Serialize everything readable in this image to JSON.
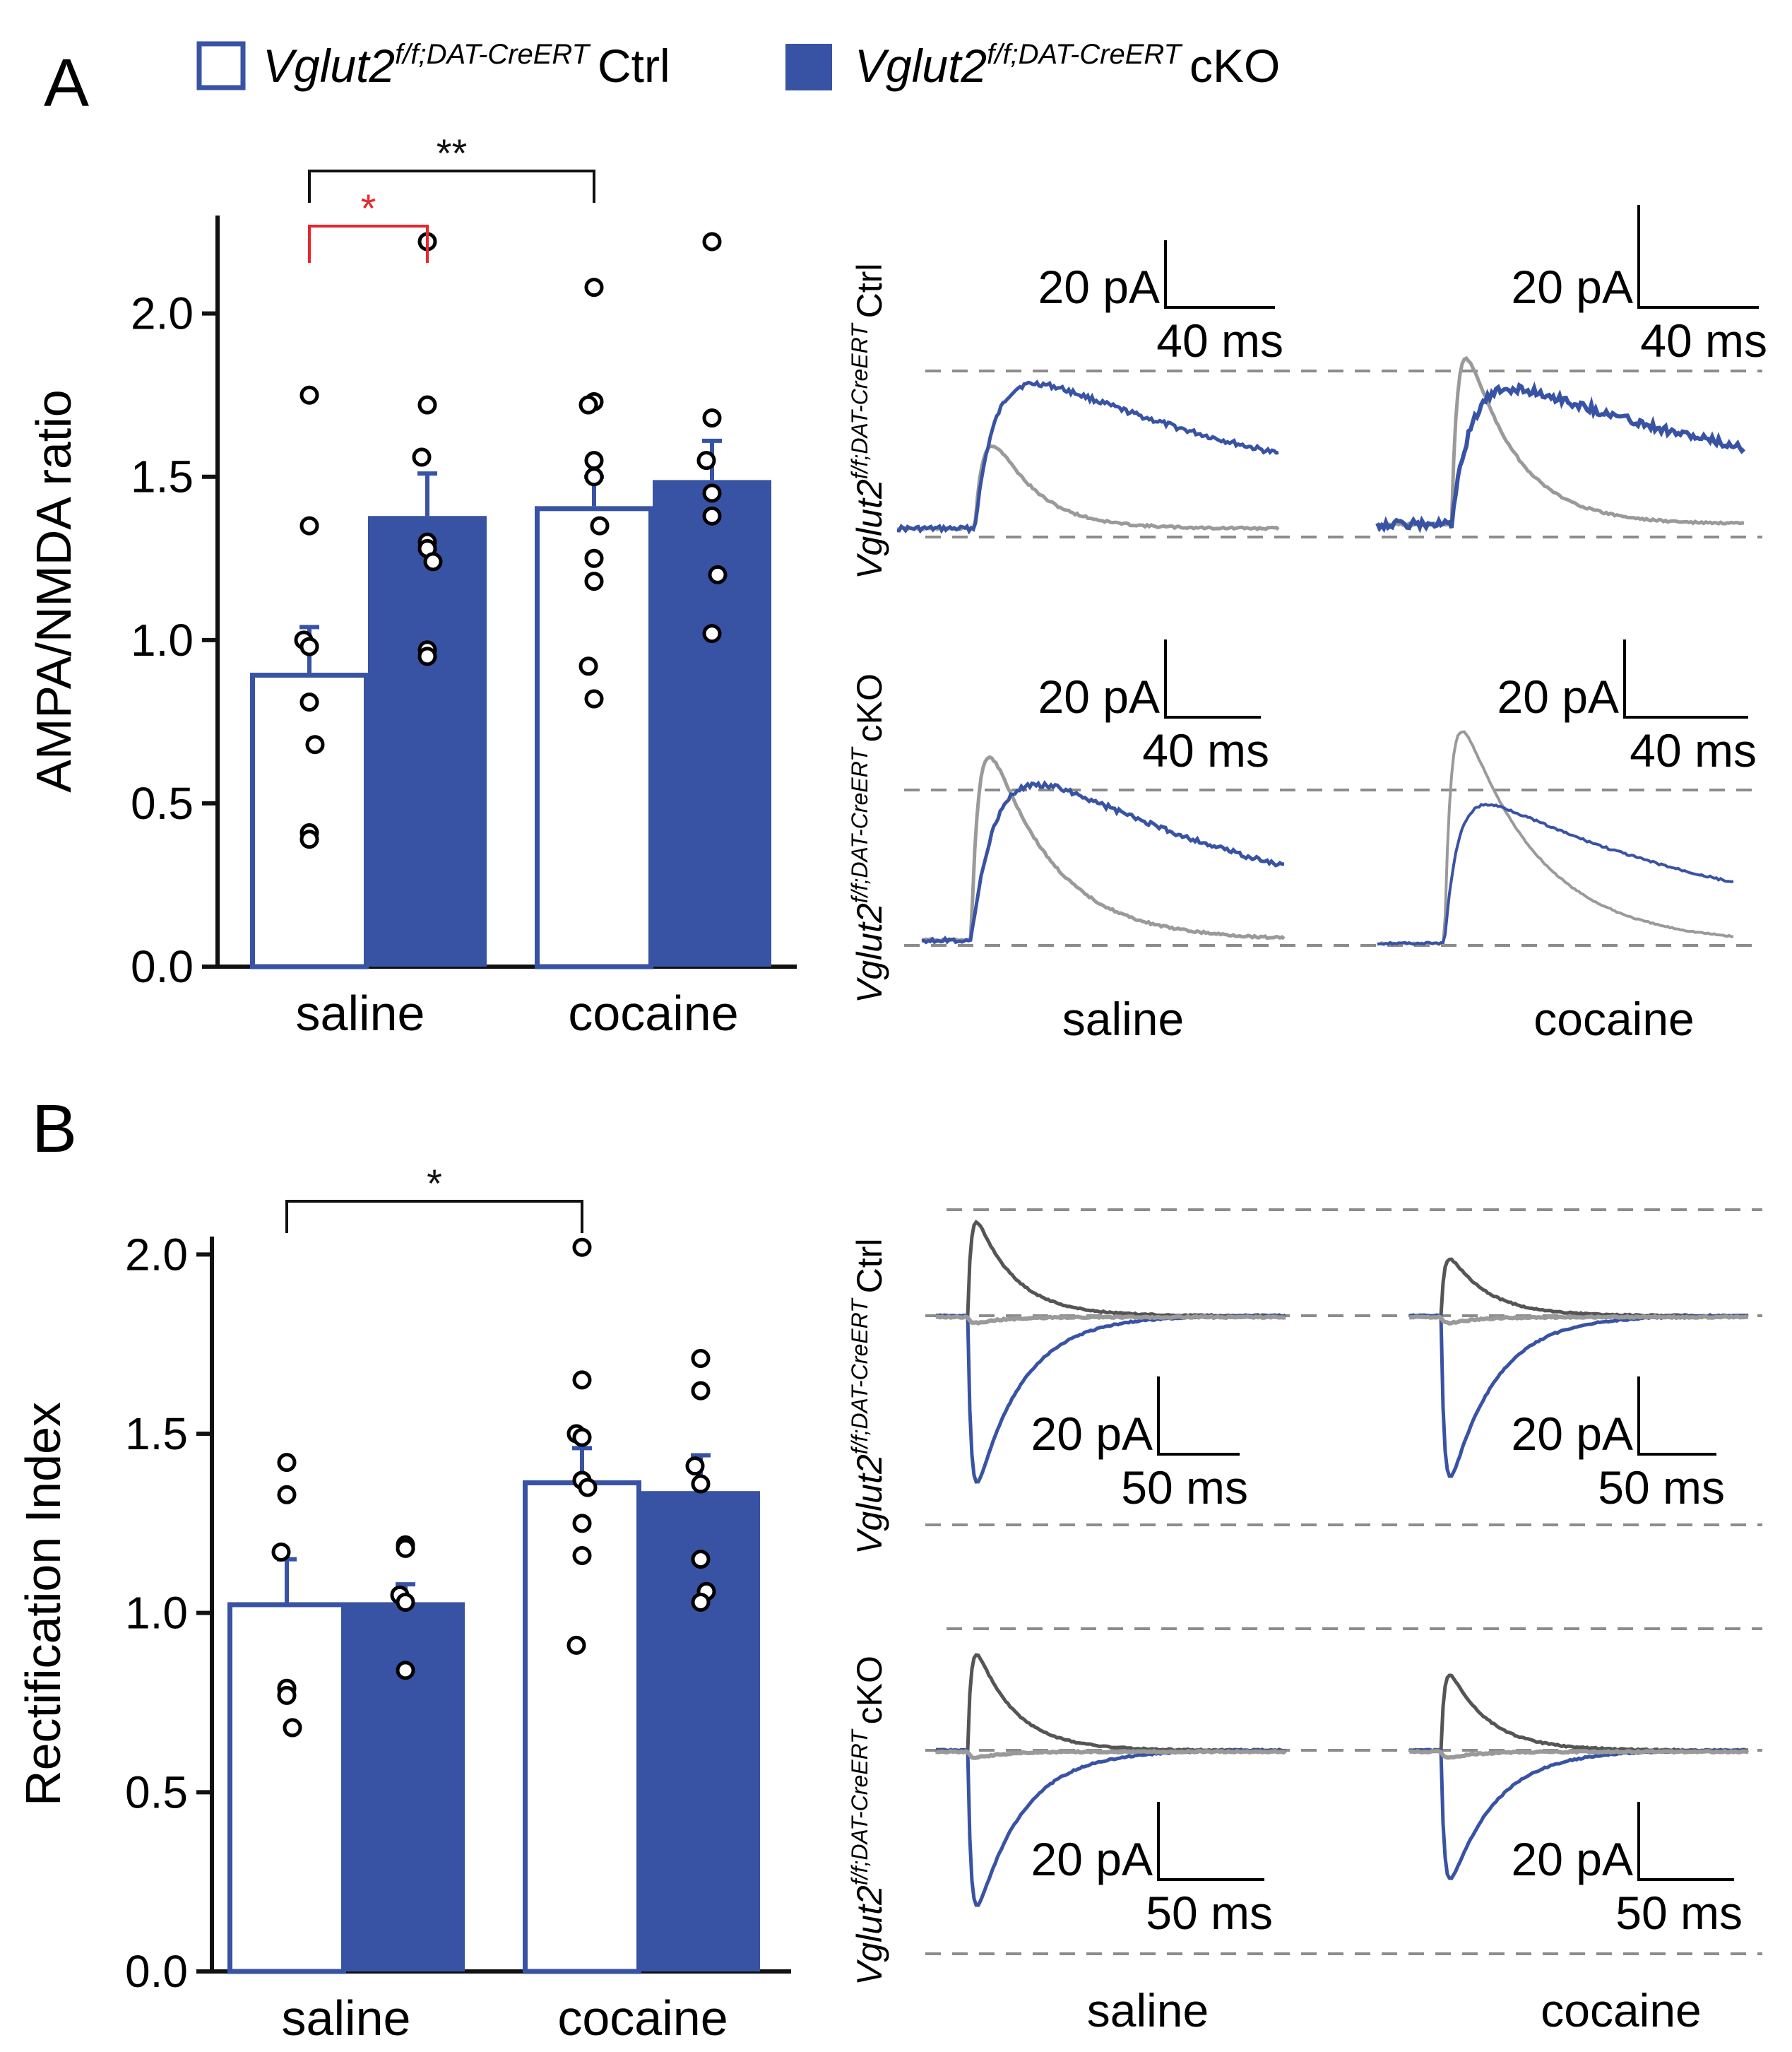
{
  "colors": {
    "blue": "#3953a4",
    "gray": "#9a9a9a",
    "dark": "#555555",
    "black": "#111111",
    "red": "#e8262b",
    "dash": "#8c8c8c"
  },
  "legend": [
    {
      "gene": "Vglut2",
      "sup": "f/f;DAT-CreERT",
      "label": "Ctrl",
      "style": "open"
    },
    {
      "gene": "Vglut2",
      "sup": "f/f;DAT-CreERT",
      "label": "cKO",
      "style": "filled"
    }
  ],
  "panels": {
    "a": "A",
    "b": "B"
  },
  "chart_data": [
    {
      "type": "bar",
      "panel": "A",
      "ylabel": "AMPA/NMDA ratio",
      "ylim": [
        0,
        2.3
      ],
      "yticks": [
        0.0,
        0.5,
        1.0,
        1.5,
        2.0
      ],
      "ytick_labels": [
        "0.0",
        "0.5",
        "1.0",
        "1.5",
        "2.0"
      ],
      "categories": [
        "saline",
        "cocaine"
      ],
      "series": [
        {
          "name": "Ctrl",
          "style": "open",
          "values": [
            0.9,
            1.41
          ],
          "sem": [
            0.14,
            0.09
          ],
          "points": [
            [
              1.75,
              1.35,
              1.0,
              0.98,
              0.81,
              0.68,
              0.41,
              0.39
            ],
            [
              2.08,
              1.73,
              1.72,
              1.55,
              1.5,
              1.35,
              1.25,
              1.18,
              0.92,
              0.82
            ]
          ]
        },
        {
          "name": "cKO",
          "style": "filled",
          "values": [
            1.38,
            1.49
          ],
          "sem": [
            0.13,
            0.12
          ],
          "points": [
            [
              2.22,
              1.72,
              1.56,
              1.3,
              1.28,
              1.24,
              0.97,
              0.95
            ],
            [
              2.22,
              1.68,
              1.55,
              1.45,
              1.38,
              1.2,
              1.02
            ]
          ]
        }
      ],
      "significance": [
        {
          "label": "*",
          "color": "red",
          "from": [
            0,
            0
          ],
          "to": [
            0,
            1
          ]
        },
        {
          "label": "**",
          "color": "black",
          "from": [
            0,
            0
          ],
          "to": [
            1,
            0
          ]
        }
      ]
    },
    {
      "type": "bar",
      "panel": "B",
      "ylabel": "Rectification Index",
      "ylim": [
        0,
        2.05
      ],
      "yticks": [
        0.0,
        0.5,
        1.0,
        1.5,
        2.0
      ],
      "ytick_labels": [
        "0.0",
        "0.5",
        "1.0",
        "1.5",
        "2.0"
      ],
      "categories": [
        "saline",
        "cocaine"
      ],
      "series": [
        {
          "name": "Ctrl",
          "style": "open",
          "values": [
            1.03,
            1.37
          ],
          "sem": [
            0.12,
            0.09
          ],
          "points": [
            [
              1.42,
              1.33,
              1.17,
              0.79,
              0.77,
              0.68
            ],
            [
              2.02,
              1.65,
              1.5,
              1.49,
              1.37,
              1.35,
              1.25,
              1.16,
              0.91
            ]
          ]
        },
        {
          "name": "cKO",
          "style": "filled",
          "values": [
            1.03,
            1.34
          ],
          "sem": [
            0.05,
            0.1
          ],
          "points": [
            [
              1.19,
              1.18,
              1.05,
              1.03,
              0.84
            ],
            [
              1.71,
              1.62,
              1.41,
              1.36,
              1.15,
              1.06,
              1.03
            ]
          ]
        }
      ],
      "significance": [
        {
          "label": "*",
          "color": "black",
          "from": [
            0,
            0
          ],
          "to": [
            1,
            0
          ]
        }
      ]
    }
  ],
  "traces": {
    "A": {
      "rows": [
        {
          "gene": "Vglut2",
          "sup": "f/f;DAT-CreERT",
          "label": "Ctrl"
        },
        {
          "gene": "Vglut2",
          "sup": "f/f;DAT-CreERT",
          "label": "cKO"
        }
      ],
      "columns": [
        "saline",
        "cocaine"
      ],
      "scalebar": {
        "current": "20 pA",
        "time": "40 ms"
      }
    },
    "B": {
      "rows": [
        {
          "gene": "Vglut2",
          "sup": "f/f;DAT-CreERT",
          "label": "Ctrl"
        },
        {
          "gene": "Vglut2",
          "sup": "f/f;DAT-CreERT",
          "label": "cKO"
        }
      ],
      "columns": [
        "saline",
        "cocaine"
      ],
      "scalebar": {
        "current": "20 pA",
        "time": "50 ms"
      }
    }
  }
}
